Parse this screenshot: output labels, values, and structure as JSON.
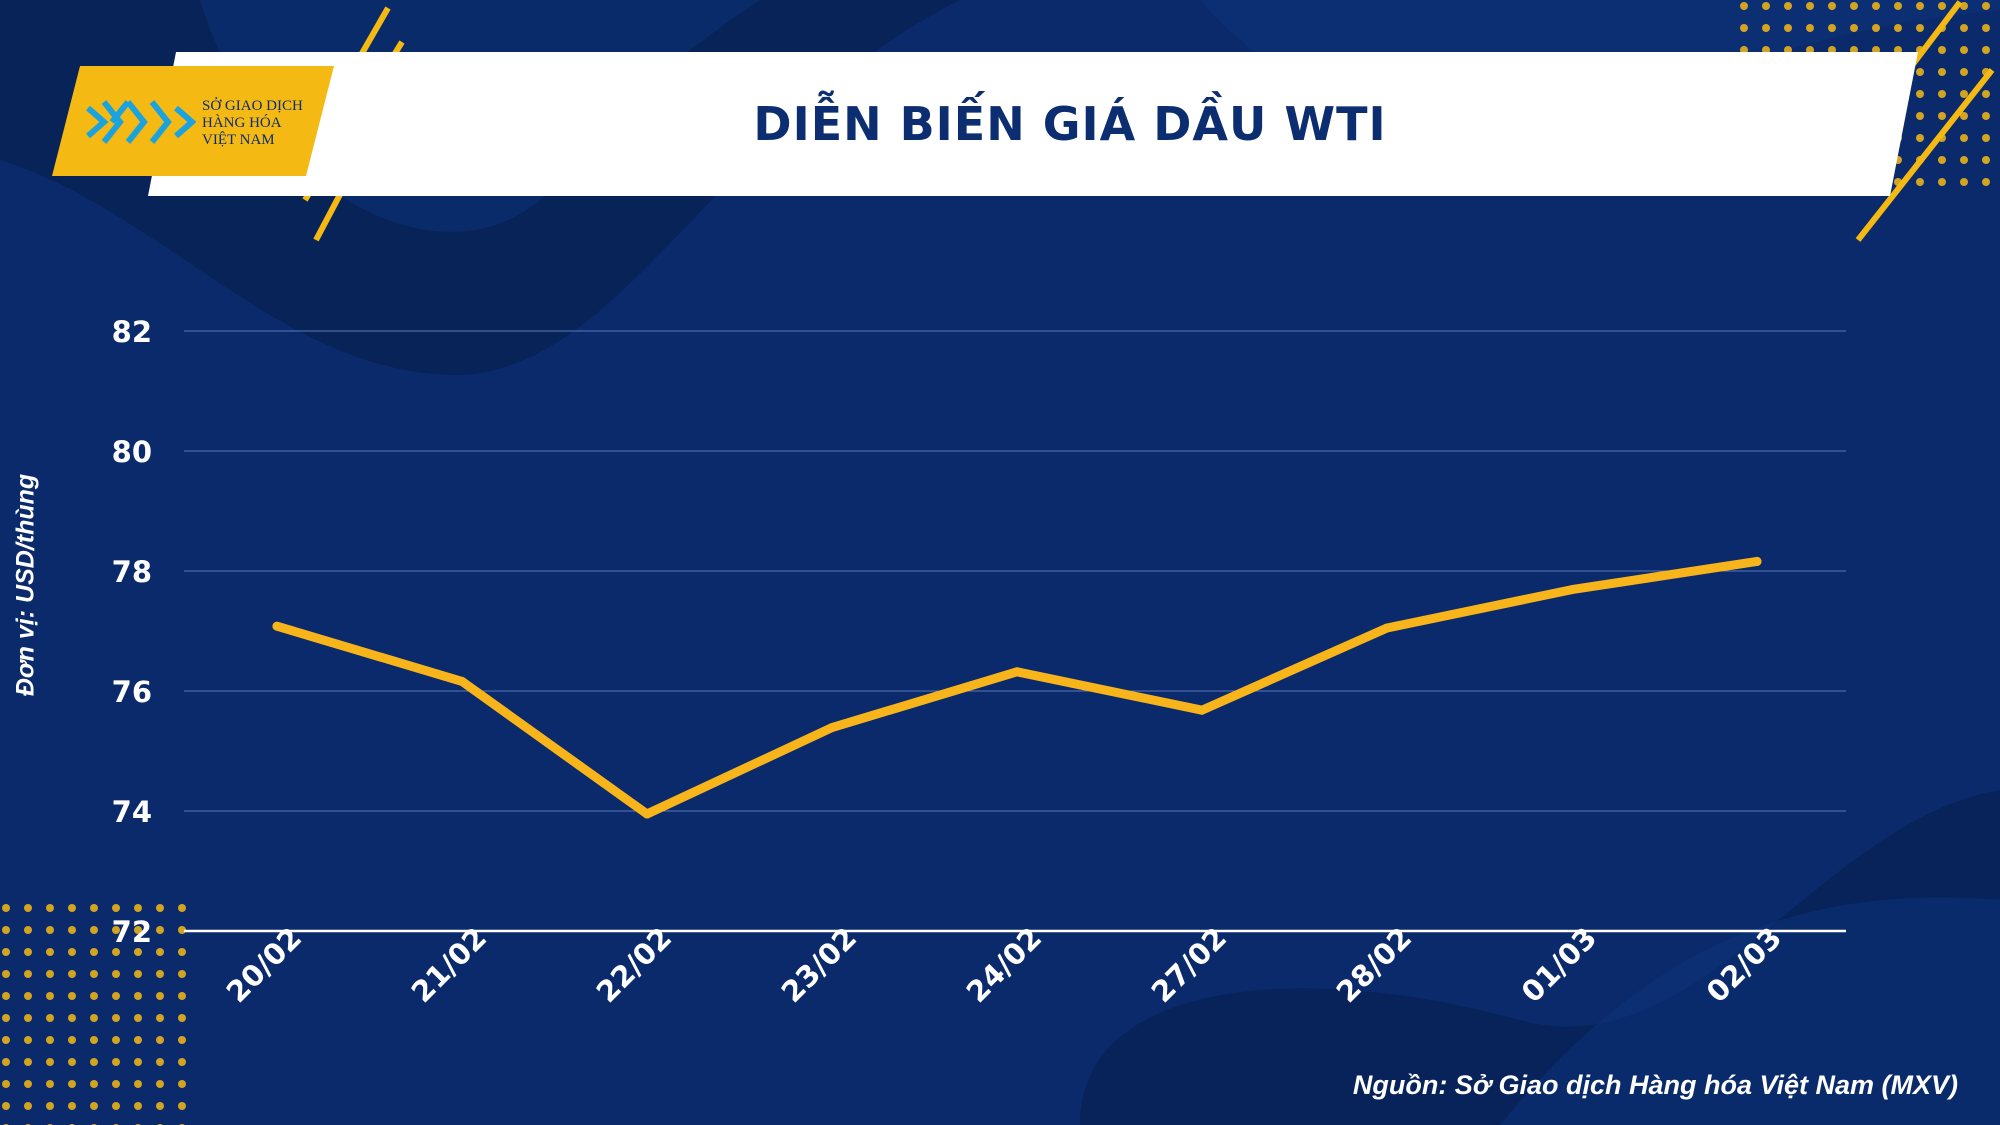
{
  "header": {
    "title": "DIỄN BIẾN GIÁ DẦU WTI",
    "logo_lines": [
      "SỞ GIAO DỊCH",
      "HÀNG HÓA",
      "VIỆT NAM"
    ]
  },
  "colors": {
    "background": "#0b2a6b",
    "line": "#f7b51b",
    "accent": "#f5b914",
    "text": "#ffffff"
  },
  "chart_data": {
    "type": "line",
    "title": "DIỄN BIẾN GIÁ DẦU WTI",
    "ylabel": "Đơn vị: USD/thùng",
    "xlabel": "",
    "categories": [
      "20/02",
      "21/02",
      "22/02",
      "23/02",
      "24/02",
      "27/02",
      "28/02",
      "01/03",
      "02/03"
    ],
    "series": [
      {
        "values": [
          77.08,
          76.16,
          73.95,
          75.39,
          76.32,
          75.68,
          77.05,
          77.69,
          78.16
        ]
      }
    ],
    "ylim": [
      72,
      82
    ],
    "yticks": [
      72,
      74,
      76,
      78,
      80,
      82
    ],
    "grid": true,
    "legend": "none"
  },
  "footer": {
    "source": "Nguồn: Sở Giao dịch Hàng hóa Việt Nam (MXV)"
  }
}
